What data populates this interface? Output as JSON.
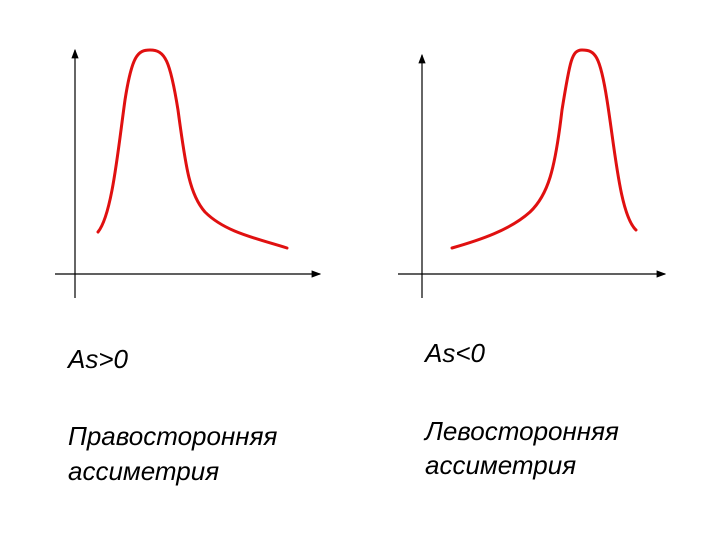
{
  "panels": [
    {
      "label": "As>0",
      "caption": [
        "Правосторонняя",
        "ассиметрия"
      ]
    },
    {
      "label": "As<0",
      "caption": [
        "Левосторонняя",
        "ассиметрия"
      ]
    }
  ]
}
